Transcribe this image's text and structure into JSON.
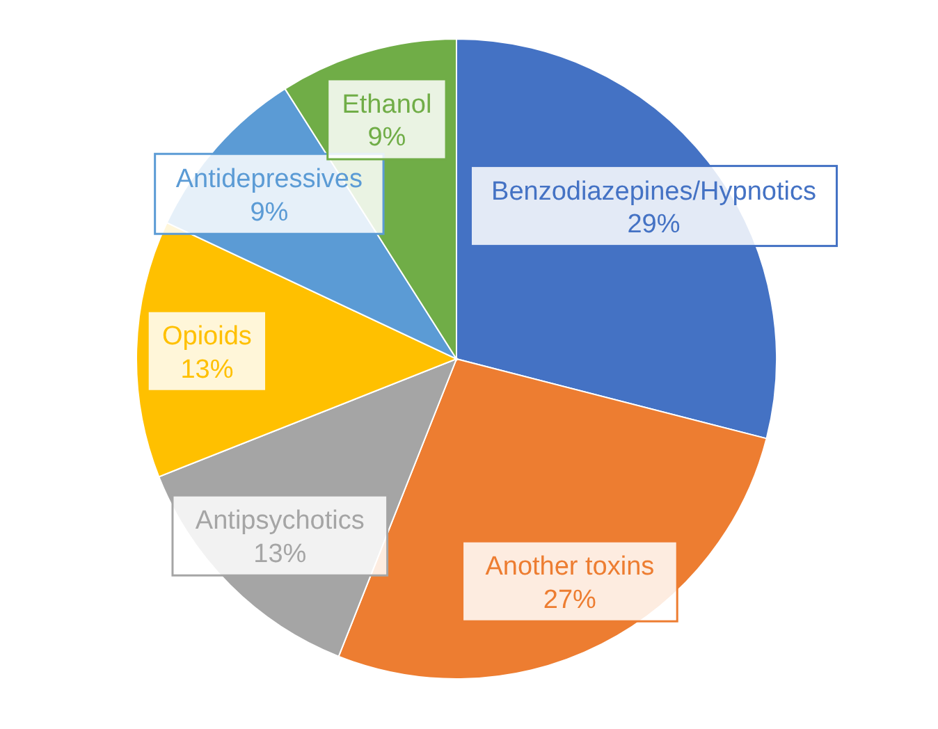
{
  "chart_data": {
    "type": "pie",
    "categories": [
      "Benzodiazepines/Hypnotics",
      "Another toxins",
      "Antipsychotics",
      "Opioids",
      "Antidepressives",
      "Ethanol"
    ],
    "values": [
      29,
      27,
      13,
      13,
      9,
      9
    ],
    "colors": [
      "#4472c4",
      "#ed7d31",
      "#a5a5a5",
      "#ffc000",
      "#5b9bd5",
      "#70ad47"
    ],
    "value_labels": [
      "29%",
      "27%",
      "13%",
      "13%",
      "9%",
      "9%"
    ]
  }
}
